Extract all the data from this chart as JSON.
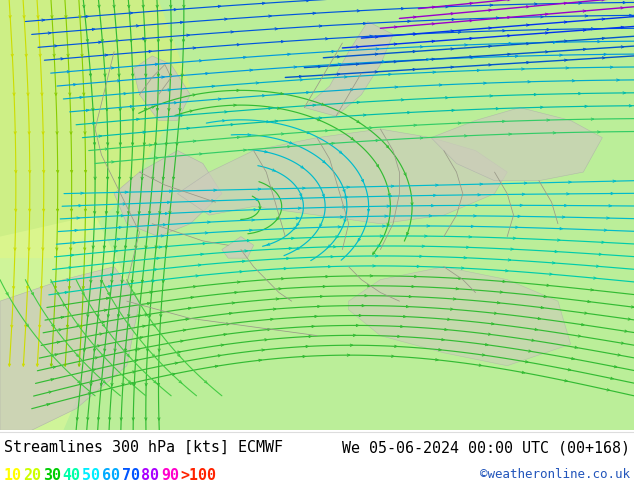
{
  "title_left": "Streamlines 300 hPa [kts] ECMWF",
  "title_right": "We 05-06-2024 00:00 UTC (00+168)",
  "credit": "©weatheronline.co.uk",
  "legend_values": [
    "10",
    "20",
    "30",
    "40",
    "50",
    "60",
    "70",
    "80",
    "90",
    ">100"
  ],
  "legend_colors": [
    "#ffff00",
    "#ccff00",
    "#00cc00",
    "#00ffaa",
    "#00eeff",
    "#00aaff",
    "#0055ff",
    "#aa00ff",
    "#ff00cc",
    "#ff2200"
  ],
  "bg_green": "#bbee99",
  "bg_green_light": "#ccffaa",
  "bg_yellow": "#eeff88",
  "land_gray": "#ccccbb",
  "border_color": "#999988",
  "fig_bg": "#ffffff",
  "figsize": [
    6.34,
    4.9
  ],
  "dpi": 100
}
